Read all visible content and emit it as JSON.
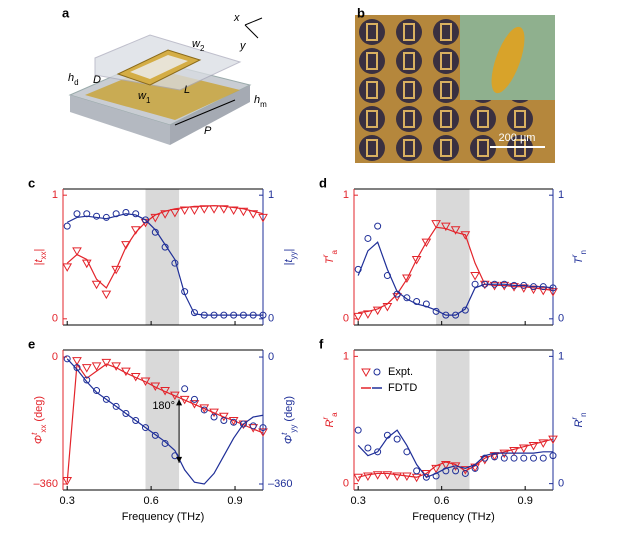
{
  "panel_a": {
    "letter": "a",
    "labels": [
      {
        "t": "x",
        "s": ""
      },
      {
        "t": "y",
        "s": ""
      },
      {
        "t": "w",
        "s": "2"
      },
      {
        "t": "h",
        "s": "d"
      },
      {
        "t": "D",
        "s": ""
      },
      {
        "t": "L",
        "s": ""
      },
      {
        "t": "w",
        "s": "1"
      },
      {
        "t": "h",
        "s": "m"
      },
      {
        "t": "P",
        "s": ""
      }
    ]
  },
  "panel_b": {
    "letter": "b",
    "scale_bar": "200 µm"
  },
  "chart_data": [
    {
      "type": "line",
      "panel": "c",
      "xlim": [
        0.285,
        1.0
      ],
      "xticks": [
        0.3,
        0.6,
        0.9
      ],
      "xtick_labels": false,
      "ylim": [
        -0.05,
        1.05
      ],
      "yticks": [
        0,
        1
      ],
      "y2lim": [
        -0.05,
        1.05
      ],
      "y2ticks": [
        0,
        1
      ],
      "shade": [
        0.58,
        0.7
      ],
      "ylabel": [
        [
          "|",
          ""
        ],
        [
          "t",
          "it"
        ],
        [
          "xx",
          "sub"
        ],
        [
          "|",
          ""
        ]
      ],
      "y2label": [
        [
          "|",
          ""
        ],
        [
          "t",
          "it"
        ],
        [
          "yy",
          "sub"
        ],
        [
          "|",
          ""
        ]
      ],
      "x": [
        0.3,
        0.335,
        0.37,
        0.405,
        0.44,
        0.475,
        0.51,
        0.545,
        0.58,
        0.615,
        0.65,
        0.685,
        0.72,
        0.755,
        0.79,
        0.825,
        0.86,
        0.895,
        0.93,
        0.965,
        1.0
      ],
      "series": [
        {
          "color": "#e3242b",
          "style": "line",
          "axis": "y",
          "values": [
            0.45,
            0.52,
            0.48,
            0.32,
            0.25,
            0.4,
            0.58,
            0.7,
            0.78,
            0.84,
            0.87,
            0.89,
            0.9,
            0.91,
            0.91,
            0.915,
            0.91,
            0.9,
            0.89,
            0.87,
            0.85
          ]
        },
        {
          "color": "#e3242b",
          "style": "triangle",
          "axis": "y",
          "values": [
            0.42,
            0.55,
            0.45,
            0.28,
            0.2,
            0.4,
            0.6,
            0.72,
            0.78,
            0.82,
            0.85,
            0.86,
            0.88,
            0.88,
            0.89,
            0.89,
            0.89,
            0.88,
            0.87,
            0.85,
            0.82
          ]
        },
        {
          "color": "#1f2f98",
          "style": "line",
          "axis": "y2",
          "values": [
            0.78,
            0.82,
            0.83,
            0.82,
            0.81,
            0.83,
            0.85,
            0.84,
            0.8,
            0.72,
            0.6,
            0.48,
            0.2,
            0.04,
            0.03,
            0.03,
            0.03,
            0.03,
            0.03,
            0.03,
            0.03
          ]
        },
        {
          "color": "#1f2f98",
          "style": "circle",
          "axis": "y2",
          "values": [
            0.75,
            0.85,
            0.85,
            0.83,
            0.82,
            0.85,
            0.86,
            0.85,
            0.8,
            0.7,
            0.58,
            0.45,
            0.22,
            0.05,
            0.03,
            0.03,
            0.03,
            0.03,
            0.03,
            0.03,
            0.03
          ]
        }
      ]
    },
    {
      "type": "line",
      "panel": "d",
      "xlim": [
        0.285,
        1.0
      ],
      "xticks": [
        0.3,
        0.6,
        0.9
      ],
      "xtick_labels": false,
      "ylim": [
        -0.05,
        1.05
      ],
      "yticks": [
        0,
        1
      ],
      "y2lim": [
        -0.05,
        1.05
      ],
      "y2ticks": [
        0,
        1
      ],
      "shade": [
        0.58,
        0.7
      ],
      "ylabel": [
        [
          "T",
          "it"
        ],
        [
          "r",
          "sup"
        ],
        [
          "a",
          "sub"
        ]
      ],
      "y2label": [
        [
          "T",
          "it"
        ],
        [
          "r",
          "sup"
        ],
        [
          "n",
          "sub"
        ]
      ],
      "x": [
        0.3,
        0.335,
        0.37,
        0.405,
        0.44,
        0.475,
        0.51,
        0.545,
        0.58,
        0.615,
        0.65,
        0.685,
        0.72,
        0.755,
        0.79,
        0.825,
        0.86,
        0.895,
        0.93,
        0.965,
        1.0
      ],
      "series": [
        {
          "color": "#e3242b",
          "style": "line",
          "axis": "y",
          "values": [
            0.05,
            0.06,
            0.08,
            0.12,
            0.2,
            0.32,
            0.48,
            0.62,
            0.74,
            0.73,
            0.7,
            0.68,
            0.45,
            0.28,
            0.27,
            0.27,
            0.26,
            0.26,
            0.25,
            0.24,
            0.23
          ]
        },
        {
          "color": "#e3242b",
          "style": "triangle",
          "axis": "y",
          "values": [
            0.02,
            0.04,
            0.07,
            0.1,
            0.18,
            0.33,
            0.48,
            0.62,
            0.77,
            0.75,
            0.72,
            0.68,
            0.35,
            0.28,
            0.27,
            0.27,
            0.26,
            0.25,
            0.24,
            0.23,
            0.22
          ]
        },
        {
          "color": "#1f2f98",
          "style": "line",
          "axis": "y2",
          "values": [
            0.35,
            0.55,
            0.62,
            0.4,
            0.22,
            0.16,
            0.12,
            0.1,
            0.07,
            0.03,
            0.03,
            0.08,
            0.25,
            0.28,
            0.28,
            0.28,
            0.27,
            0.27,
            0.26,
            0.26,
            0.25
          ]
        },
        {
          "color": "#1f2f98",
          "style": "circle",
          "axis": "y2",
          "values": [
            0.4,
            0.65,
            0.75,
            0.35,
            0.2,
            0.17,
            0.14,
            0.12,
            0.06,
            0.03,
            0.03,
            0.07,
            0.28,
            0.28,
            0.28,
            0.28,
            0.27,
            0.27,
            0.26,
            0.26,
            0.25
          ]
        }
      ]
    },
    {
      "type": "line",
      "panel": "e",
      "xlim": [
        0.285,
        1.0
      ],
      "xticks": [
        0.3,
        0.6,
        0.9
      ],
      "xtick_labels": true,
      "xlabel": "Frequency (THz)",
      "ylim": [
        -377,
        20
      ],
      "yticks": [
        {
          "value": -360,
          "label": "–360"
        },
        0
      ],
      "y2lim": [
        -377,
        20
      ],
      "y2ticks": [
        {
          "value": -360,
          "label": "–360"
        },
        0
      ],
      "shade": [
        0.58,
        0.7
      ],
      "ylabel": [
        [
          "Φ",
          "it"
        ],
        [
          "t",
          "sup"
        ],
        [
          "xx",
          "sub"
        ],
        [
          " (deg)",
          ""
        ]
      ],
      "y2label": [
        [
          "Φ",
          "it"
        ],
        [
          "t",
          "sup"
        ],
        [
          "yy",
          "sub"
        ],
        [
          " (deg)",
          ""
        ]
      ],
      "annotation": {
        "text": "180°",
        "x": 0.7,
        "y_from": -120,
        "y_to": -300
      },
      "x": [
        0.3,
        0.335,
        0.37,
        0.405,
        0.44,
        0.475,
        0.51,
        0.545,
        0.58,
        0.615,
        0.65,
        0.685,
        0.72,
        0.755,
        0.79,
        0.825,
        0.86,
        0.895,
        0.93,
        0.965,
        1.0
      ],
      "series": [
        {
          "color": "#e3242b",
          "style": "line",
          "axis": "y",
          "values": [
            -355,
            -20,
            -60,
            -40,
            -20,
            -30,
            -45,
            -58,
            -70,
            -85,
            -98,
            -110,
            -122,
            -134,
            -146,
            -158,
            -170,
            -180,
            -192,
            -204,
            -215
          ]
        },
        {
          "color": "#e3242b",
          "style": "triangle",
          "axis": "y",
          "values": [
            -350,
            -10,
            -30,
            -25,
            -15,
            -25,
            -40,
            -55,
            -68,
            -82,
            -95,
            -108,
            -120,
            -132,
            -144,
            -156,
            -168,
            -180,
            -190,
            -200,
            -212
          ]
        },
        {
          "color": "#1f2f98",
          "style": "line",
          "axis": "y2",
          "values": [
            -5,
            -35,
            -70,
            -100,
            -120,
            -140,
            -160,
            -180,
            -200,
            -220,
            -240,
            -265,
            -320,
            -355,
            -360,
            -330,
            -280,
            -230,
            -190,
            -170,
            -165
          ]
        },
        {
          "color": "#1f2f98",
          "style": "circle",
          "axis": "y2",
          "values": [
            -5,
            -30,
            -65,
            -95,
            -120,
            -140,
            -160,
            -180,
            -200,
            -222,
            -245,
            -280,
            -90,
            -120,
            -150,
            -170,
            -180,
            -185,
            -190,
            -195,
            -200
          ]
        }
      ]
    },
    {
      "type": "line",
      "panel": "f",
      "xlim": [
        0.285,
        1.0
      ],
      "xticks": [
        0.3,
        0.6,
        0.9
      ],
      "xtick_labels": true,
      "xlabel": "Frequency (THz)",
      "ylim": [
        -0.05,
        1.05
      ],
      "yticks": [
        0,
        1
      ],
      "y2lim": [
        -0.05,
        1.05
      ],
      "y2ticks": [
        0,
        1
      ],
      "shade": [
        0.58,
        0.7
      ],
      "ylabel": [
        [
          "R",
          "it"
        ],
        [
          "r",
          "sup"
        ],
        [
          "a",
          "sub"
        ]
      ],
      "y2label": [
        [
          "R",
          "it"
        ],
        [
          "r",
          "sup"
        ],
        [
          "n",
          "sub"
        ]
      ],
      "legend": [
        "Expt.",
        "FDTD"
      ],
      "x": [
        0.3,
        0.335,
        0.37,
        0.405,
        0.44,
        0.475,
        0.51,
        0.545,
        0.58,
        0.615,
        0.65,
        0.685,
        0.72,
        0.755,
        0.79,
        0.825,
        0.86,
        0.895,
        0.93,
        0.965,
        1.0
      ],
      "series": [
        {
          "color": "#e3242b",
          "style": "line",
          "axis": "y",
          "values": [
            0.05,
            0.07,
            0.08,
            0.08,
            0.07,
            0.06,
            0.05,
            0.08,
            0.14,
            0.17,
            0.15,
            0.1,
            0.14,
            0.2,
            0.23,
            0.25,
            0.27,
            0.29,
            0.31,
            0.33,
            0.35
          ]
        },
        {
          "color": "#e3242b",
          "style": "triangle",
          "axis": "y",
          "values": [
            0.05,
            0.06,
            0.07,
            0.07,
            0.06,
            0.06,
            0.05,
            0.08,
            0.12,
            0.15,
            0.14,
            0.11,
            0.13,
            0.19,
            0.22,
            0.24,
            0.26,
            0.28,
            0.3,
            0.32,
            0.35
          ]
        },
        {
          "color": "#1f2f98",
          "style": "line",
          "axis": "y2",
          "values": [
            0.3,
            0.22,
            0.25,
            0.36,
            0.42,
            0.3,
            0.15,
            0.05,
            0.08,
            0.12,
            0.14,
            0.12,
            0.15,
            0.22,
            0.24,
            0.24,
            0.24,
            0.24,
            0.24,
            0.25,
            0.25
          ]
        },
        {
          "color": "#1f2f98",
          "style": "circle",
          "axis": "y2",
          "values": [
            0.42,
            0.28,
            0.25,
            0.38,
            0.35,
            0.25,
            0.1,
            0.05,
            0.06,
            0.1,
            0.1,
            0.08,
            0.12,
            0.2,
            0.21,
            0.2,
            0.2,
            0.2,
            0.2,
            0.2,
            0.22
          ]
        }
      ]
    }
  ]
}
